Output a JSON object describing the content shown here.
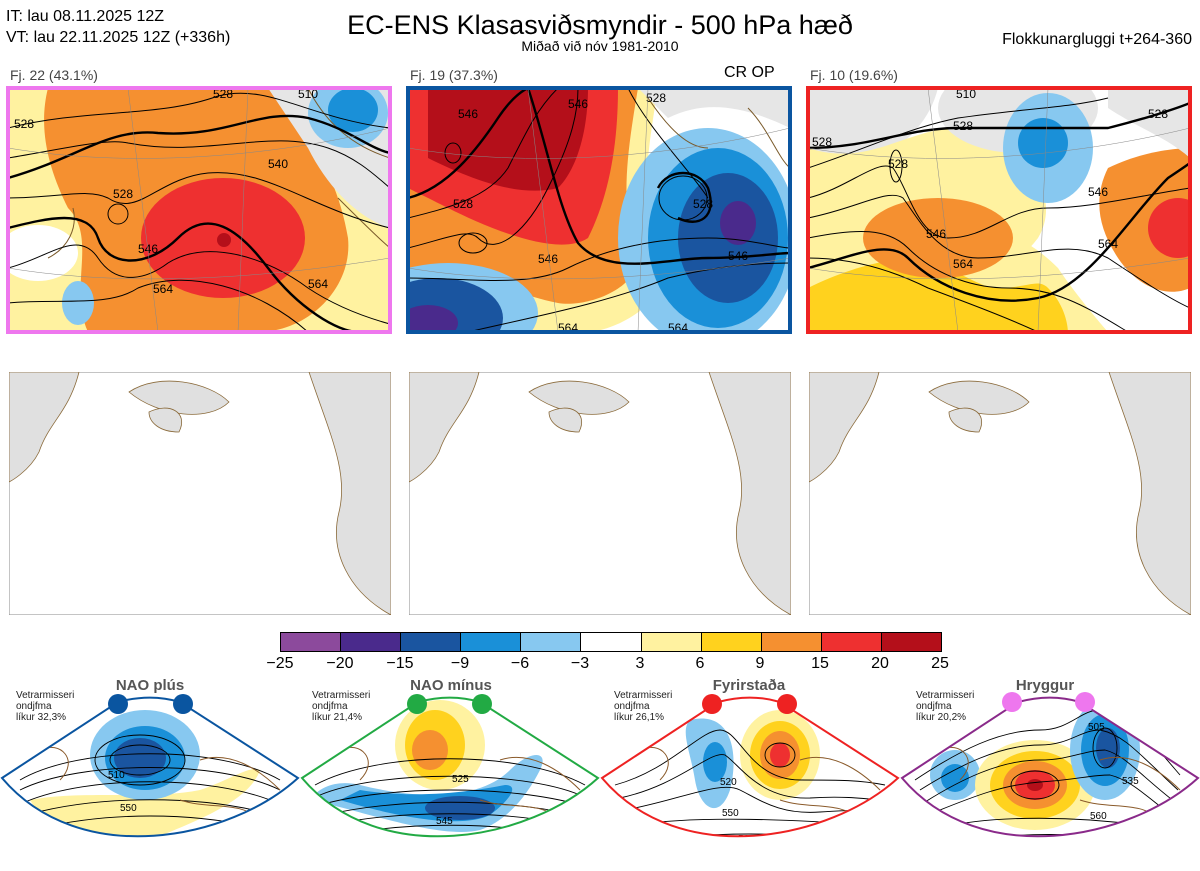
{
  "header": {
    "it_line": "IT: lau 08.11.2025 12Z",
    "vt_line": "VT: lau 22.11.2025 12Z  (+336h)",
    "title": "EC-ENS Klasasviðsmyndir - 500 hPa hæð",
    "subtitle": "Miðað við nóv 1981-2010",
    "window": "Flokkunargluggi t+264-360"
  },
  "clusters": [
    {
      "label": "Fj. 22 (43.1%)",
      "border_color": "#ee77ee",
      "op_marker": ""
    },
    {
      "label": "Fj. 19 (37.3%)",
      "border_color": "#0a55a0",
      "op_marker": "CR OP"
    },
    {
      "label": "Fj. 10 (19.6%)",
      "border_color": "#ee2222",
      "op_marker": ""
    }
  ],
  "map_contour_labels": [
    [
      "528",
      "540",
      "546",
      "564",
      "564",
      "528",
      "528",
      "510"
    ],
    [
      "546",
      "528",
      "546",
      "546",
      "546",
      "528",
      "564",
      "564",
      "528"
    ],
    [
      "510",
      "528",
      "528",
      "528",
      "546",
      "546",
      "564",
      "564",
      "528"
    ]
  ],
  "colorbar": {
    "ticks": [
      "−25",
      "−20",
      "−15",
      "−9",
      "−6",
      "−3",
      "3",
      "6",
      "9",
      "15",
      "20",
      "25"
    ],
    "colors": [
      "#8c4a9c",
      "#4a2a8c",
      "#1a55a0",
      "#1a90d8",
      "#87c8f0",
      "#ffffff",
      "#fff2a0",
      "#ffd21e",
      "#f59030",
      "#ee3030",
      "#b40f1a"
    ]
  },
  "regimes": [
    {
      "name": "NAO plús",
      "note1": "Vetrarmisseri",
      "note2": "ondjfma",
      "note3": "líkur 32,3%",
      "color": "#0a55a0",
      "contours": [
        "510",
        "550"
      ]
    },
    {
      "name": "NAO mínus",
      "note1": "Vetrarmisseri",
      "note2": "ondjfma",
      "note3": "líkur 21,4%",
      "color": "#22aa44",
      "contours": [
        "525",
        "545",
        "565"
      ]
    },
    {
      "name": "Fyrirstaða",
      "note1": "Vetrarmisseri",
      "note2": "ondjfma",
      "note3": "líkur 26,1%",
      "color": "#ee2222",
      "contours": [
        "520",
        "550",
        "560"
      ]
    },
    {
      "name": "Hryggur",
      "note1": "Vetrarmisseri",
      "note2": "ondjfma",
      "note3": "líkur 20,2%",
      "color": "#ee77ee",
      "contours": [
        "505",
        "535",
        "560"
      ]
    }
  ],
  "chart_data": {
    "type": "heatmap",
    "title": "EC-ENS Klasasviðsmyndir - 500 hPa hæð",
    "variable": "500 hPa height anomaly (dam) with height contours",
    "colorbar_bounds": [
      -25,
      -20,
      -15,
      -9,
      -6,
      -3,
      3,
      6,
      9,
      15,
      20,
      25
    ],
    "panels": [
      {
        "name": "Fj. 22",
        "share_pct": 43.1,
        "contours_dam": [
          528,
          540,
          546,
          564
        ]
      },
      {
        "name": "Fj. 19",
        "share_pct": 37.3,
        "contours_dam": [
          528,
          546,
          564
        ]
      },
      {
        "name": "Fj. 10",
        "share_pct": 19.6,
        "contours_dam": [
          510,
          528,
          546,
          564
        ]
      }
    ],
    "regime_probabilities_pct": [
      {
        "regime": "NAO plús",
        "value": 32.3
      },
      {
        "regime": "NAO mínus",
        "value": 21.4
      },
      {
        "regime": "Fyrirstaða",
        "value": 26.1
      },
      {
        "regime": "Hryggur",
        "value": 20.2
      }
    ]
  }
}
